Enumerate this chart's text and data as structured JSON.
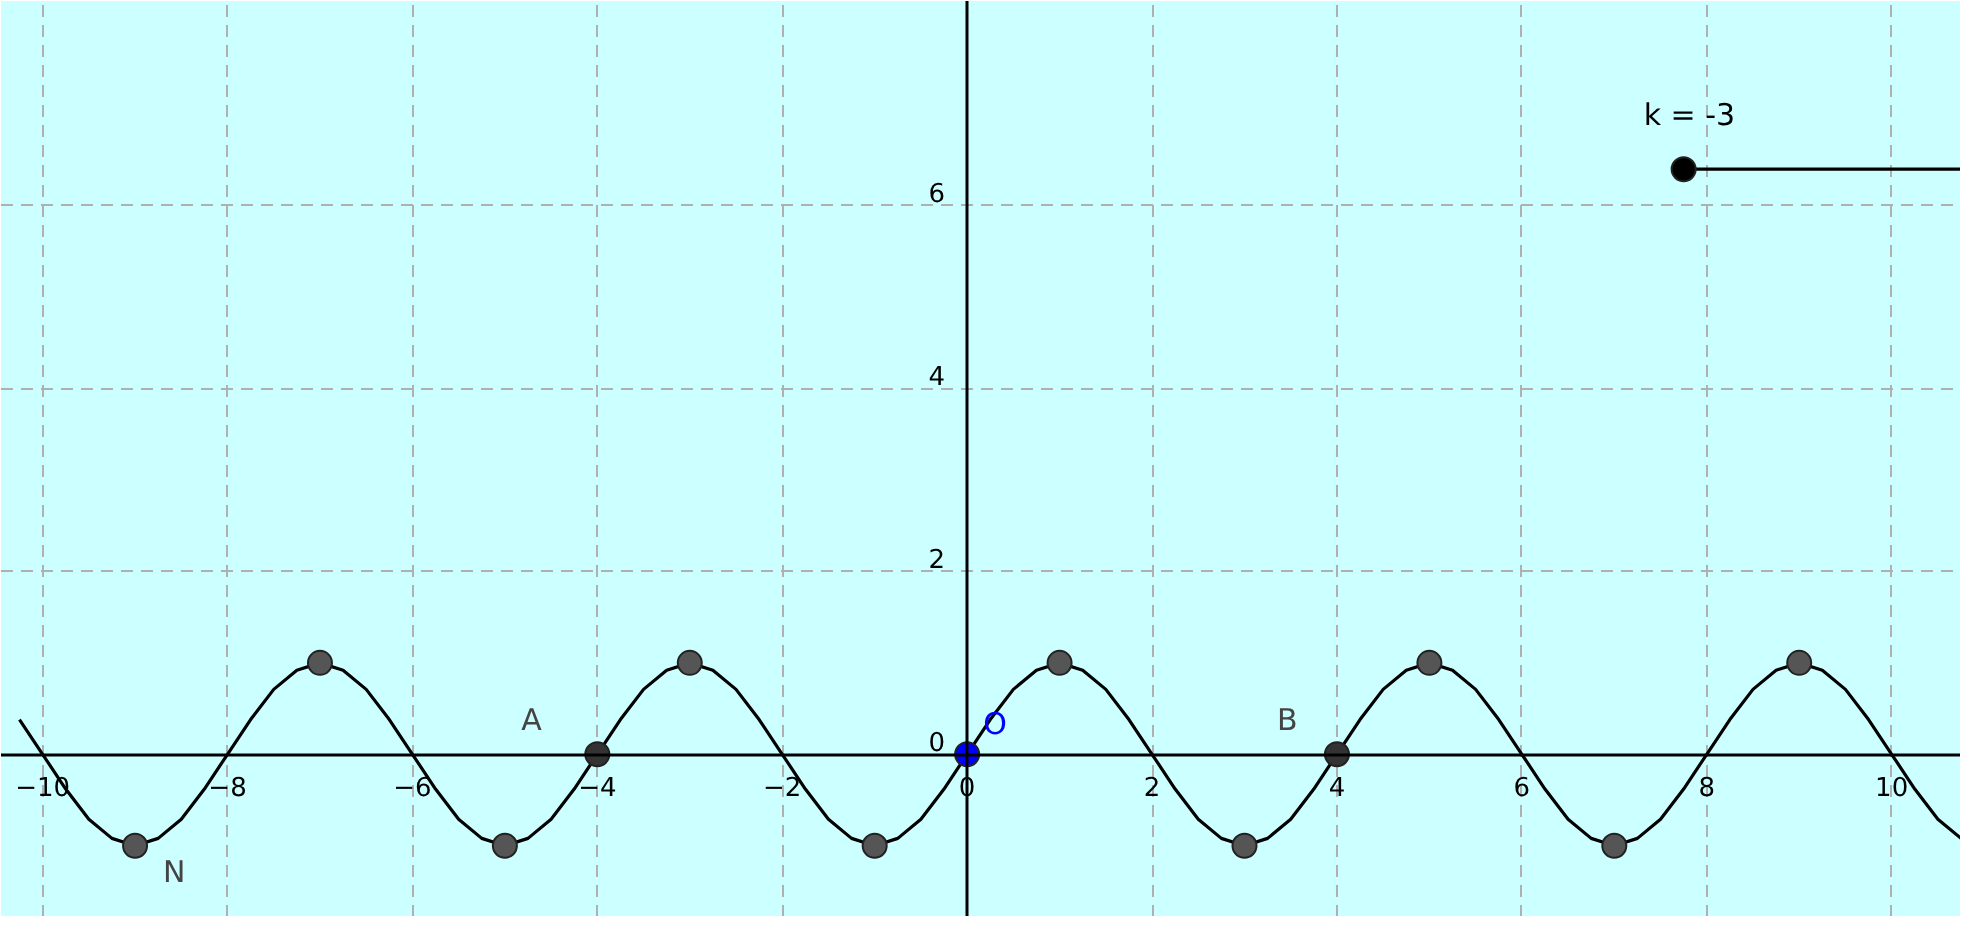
{
  "chart_data": {
    "type": "line",
    "xlim": [
      -10.45,
      10.75
    ],
    "ylim": [
      -1.78,
      8.24
    ],
    "xticks": [
      -10,
      -8,
      -6,
      -4,
      -2,
      0,
      2,
      4,
      6,
      8,
      10
    ],
    "yticks": [
      0,
      2,
      4,
      6
    ],
    "grid": true,
    "series": [
      {
        "color": "#000000",
        "x": [
          -10.25,
          -10,
          -9.75,
          -9.5,
          -9.25,
          -9,
          -8.75,
          -8.5,
          -8.25,
          -8,
          -7.75,
          -7.5,
          -7.25,
          -7,
          -6.75,
          -6.5,
          -6.25,
          -6,
          -5.75,
          -5.5,
          -5.25,
          -5,
          -4.75,
          -4.5,
          -4.25,
          -4,
          -3.75,
          -3.5,
          -3.25,
          -3,
          -2.75,
          -2.5,
          -2.25,
          -2,
          -1.75,
          -1.5,
          -1.25,
          -1,
          -0.75,
          -0.5,
          -0.25,
          0,
          0.25,
          0.5,
          0.75,
          1,
          1.25,
          1.5,
          1.75,
          2,
          2.25,
          2.5,
          2.75,
          3,
          3.25,
          3.5,
          3.75,
          4,
          4.25,
          4.5,
          4.75,
          5,
          5.25,
          5.5,
          5.75,
          6,
          6.25,
          6.5,
          6.75,
          7,
          7.25,
          7.5,
          7.75,
          8,
          8.25,
          8.5,
          8.75,
          9,
          9.25,
          9.5,
          9.75,
          10,
          10.25,
          10.5,
          10.75
        ],
        "values": [
          0.38,
          0,
          -0.38,
          -0.71,
          -0.92,
          -1,
          -0.92,
          -0.71,
          -0.38,
          0,
          0.38,
          0.71,
          0.92,
          1,
          0.92,
          0.71,
          0.38,
          0,
          -0.38,
          -0.71,
          -0.92,
          -1,
          -0.92,
          -0.71,
          -0.38,
          0,
          0.38,
          0.71,
          0.92,
          1,
          0.92,
          0.71,
          0.38,
          0,
          -0.38,
          -0.71,
          -0.92,
          -1,
          -0.92,
          -0.71,
          -0.38,
          0,
          0.38,
          0.71,
          0.92,
          1,
          0.92,
          0.71,
          0.38,
          0,
          -0.38,
          -0.71,
          -0.92,
          -1,
          -0.92,
          -0.71,
          -0.38,
          0,
          0.38,
          0.71,
          0.92,
          1,
          0.92,
          0.71,
          0.38,
          0,
          -0.38,
          -0.71,
          -0.92,
          -1,
          -0.92,
          -0.71,
          -0.38,
          0,
          0.38,
          0.71,
          0.92,
          1,
          0.92,
          0.71,
          0.38,
          0,
          -0.38,
          -0.71,
          -0.92
        ]
      },
      {
        "type": "scatter",
        "marker": "circle",
        "color": "#555555",
        "x": [
          -9,
          -7,
          -5,
          -3,
          -1,
          1,
          3,
          5,
          7,
          9
        ],
        "values": [
          -1,
          1,
          -1,
          1,
          -1,
          1,
          -1,
          1,
          -1,
          1
        ]
      },
      {
        "type": "scatter",
        "marker": "circle",
        "color": "#333333",
        "x": [
          -4,
          4
        ],
        "values": [
          0,
          0
        ]
      },
      {
        "type": "scatter",
        "marker": "circle",
        "color": "#0000ff",
        "x": [
          0
        ],
        "values": [
          0
        ]
      },
      {
        "color": "#000000",
        "x": [
          7.75,
          10.75
        ],
        "values": [
          6.4,
          6.4
        ]
      },
      {
        "type": "scatter",
        "marker": "circle",
        "color": "#000000",
        "x": [
          7.75
        ],
        "values": [
          6.4
        ]
      }
    ],
    "annotations": [
      {
        "text": "A",
        "x": -4,
        "y": 0
      },
      {
        "text": "B",
        "x": 4,
        "y": 0
      },
      {
        "text": "N",
        "x": -9,
        "y": -1
      },
      {
        "text": "O",
        "x": 0,
        "y": 0
      },
      {
        "text": "k = -3",
        "x": 7.75,
        "y": 6.4
      }
    ]
  }
}
